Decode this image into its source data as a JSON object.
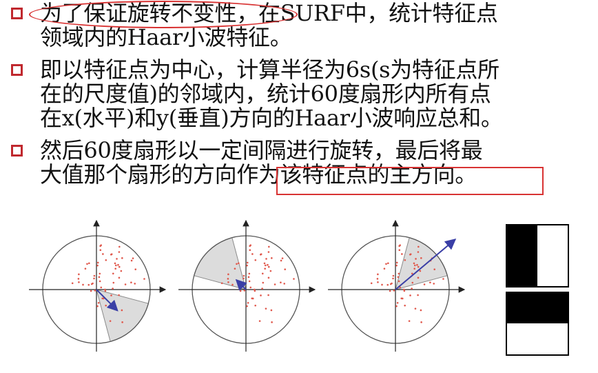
{
  "bullets": [
    {
      "lines": [
        "为了保证旋转不变性，在SURF中，统计特征点",
        "领域内的Haar小波特征。"
      ]
    },
    {
      "lines": [
        "即以特征点为中心，计算半径为6s(s为特征点所",
        "在的尺度值)的邻域内，统计60度扇形内所有点",
        "在x(水平)和y(垂直)方向的Haar小波响应总和。"
      ]
    },
    {
      "lines": [
        "然后60度扇形以一定间隔进行旋转，最后将最",
        "大值那个扇形的方向作为该特征点的主方向。"
      ]
    }
  ],
  "colors": {
    "bullet": "#c0282e",
    "highlight": "#d83232",
    "dots": "#e0584c",
    "sector_fill": "#dcdcdc",
    "arrow": "#3a3fa6"
  },
  "figures": [
    {
      "name": "orientation-window-1",
      "sector_start_deg": 285,
      "sector_end_deg": 345,
      "arrow_deg": 315,
      "arrow_len": 0.55
    },
    {
      "name": "orientation-window-2",
      "sector_start_deg": 105,
      "sector_end_deg": 165,
      "arrow_deg": 135,
      "arrow_len": 0.25
    },
    {
      "name": "orientation-window-3",
      "sector_start_deg": 15,
      "sector_end_deg": 75,
      "arrow_deg": 40,
      "arrow_len": 1.45
    }
  ],
  "haar_wavelets": [
    {
      "name": "haar-x-filter",
      "orientation": "vertical-split"
    },
    {
      "name": "haar-y-filter",
      "orientation": "horizontal-split"
    }
  ]
}
